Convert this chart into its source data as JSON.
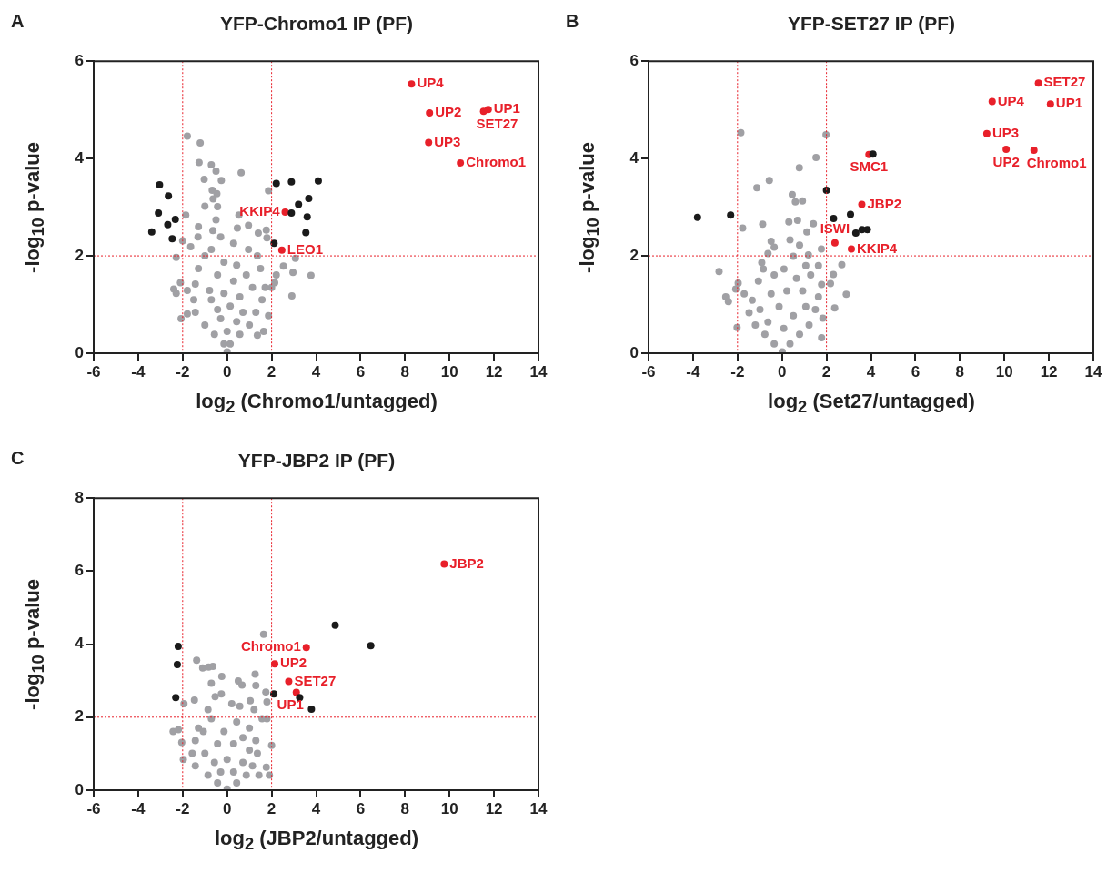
{
  "chart_data": [
    {
      "type": "scatter",
      "title": "YFP-Chromo1 IP (PF)",
      "xlabel": "log$_{2}$ (Chromo1/untagged)",
      "ylabel": "-log$_{10}$ p-value",
      "marker": "circle",
      "xlim": [
        -6,
        14
      ],
      "ylim": [
        0,
        6
      ],
      "xticks": [
        -6,
        -4,
        -2,
        0,
        2,
        4,
        6,
        8,
        10,
        12,
        14
      ],
      "yticks": [
        0,
        2,
        4,
        6
      ],
      "ref_lines": [
        {
          "axis": "x",
          "value": -2,
          "color": "#e8202a",
          "line_style": "dotted"
        },
        {
          "axis": "x",
          "value": 2,
          "color": "#e8202a",
          "line_style": "dotted"
        },
        {
          "axis": "y",
          "value": 2,
          "color": "#e8202a",
          "line_style": "dotted"
        }
      ],
      "series": [
        {
          "color": "#a0a0a4",
          "x": [
            -1.79,
            -1.21,
            -1.26,
            -0.71,
            -0.5,
            -1.03,
            -0.26,
            0.63,
            -0.67,
            -0.46,
            -0.63,
            -1.0,
            -0.43,
            -1.86,
            0.53,
            1.86,
            -0.5,
            -1.29,
            0.46,
            0.96,
            1.76,
            1.4,
            -2.0,
            1.79,
            -1.31,
            -0.64,
            -2.29,
            -1.64,
            2.53,
            3.07,
            2.96,
            3.77,
            2.21,
            2.91,
            -2.4,
            -2.1,
            -2.07,
            -1.79,
            1.36,
            1.64,
            1.86,
            0,
            -0.14,
            0.14,
            -0.57,
            0.57,
            -1.0,
            1.0,
            -1.43,
            1.29,
            -1.5,
            1.57,
            -1.43,
            1.71,
            -1.29,
            1.5,
            -1.0,
            0.96,
            -0.71,
            -0.29,
            0.29,
            -0.14,
            0.43,
            -0.43,
            0.29,
            -0.14,
            0.57,
            -0.71,
            0.14,
            -0.29,
            0.43,
            -0.43,
            0.71,
            0,
            -0.79,
            0.86,
            1.14,
            1.36,
            2.0,
            2.14,
            -2.29,
            -1.79
          ],
          "values": [
            4.46,
            4.32,
            3.92,
            3.87,
            3.74,
            3.57,
            3.55,
            3.71,
            3.35,
            3.28,
            3.17,
            3.02,
            3.01,
            2.84,
            2.84,
            3.34,
            2.74,
            2.6,
            2.57,
            2.63,
            2.53,
            2.47,
            2.31,
            2.37,
            2.39,
            2.52,
            1.97,
            2.19,
            1.79,
            1.95,
            1.66,
            1.6,
            1.61,
            1.18,
            1.32,
            1.45,
            0.71,
            0.81,
            0.37,
            0.45,
            0.77,
            0.03,
            0.19,
            0.19,
            0.39,
            0.39,
            0.58,
            0.58,
            0.84,
            0.84,
            1.1,
            1.1,
            1.42,
            1.35,
            1.74,
            1.74,
            2.0,
            2.13,
            2.13,
            2.39,
            2.26,
            1.87,
            1.81,
            1.61,
            1.48,
            1.23,
            1.16,
            1.1,
            0.97,
            0.71,
            0.65,
            0.9,
            0.84,
            0.45,
            1.29,
            1.61,
            1.35,
            2.0,
            1.35,
            1.45,
            1.23,
            1.29
          ]
        },
        {
          "color": "#1a1a1a",
          "x": [
            -3.04,
            -2.64,
            -3.09,
            -2.33,
            -2.67,
            -3.39,
            -2.47,
            2.21,
            2.89,
            4.1,
            3.67,
            3.21,
            2.89,
            3.6,
            3.54,
            2.11
          ],
          "values": [
            3.46,
            3.23,
            2.88,
            2.75,
            2.64,
            2.49,
            2.35,
            3.49,
            3.52,
            3.54,
            3.18,
            3.06,
            2.88,
            2.8,
            2.48,
            2.26
          ]
        },
        {
          "color": "#e8202a",
          "x": [
            8.29,
            9.1,
            11.74,
            11.53,
            9.06,
            10.49,
            2.61,
            2.46
          ],
          "values": [
            5.53,
            4.94,
            5.01,
            4.97,
            4.33,
            3.91,
            2.9,
            2.12
          ]
        }
      ],
      "annotations": [
        "A",
        {
          "text": "UP4",
          "x": 8.29,
          "y": 5.53
        },
        {
          "text": "UP2",
          "x": 9.1,
          "y": 4.94
        },
        {
          "text": "UP1",
          "x": 11.74,
          "y": 5.01
        },
        {
          "text": "SET27",
          "x": 11.53,
          "y": 4.97
        },
        {
          "text": "UP3",
          "x": 9.06,
          "y": 4.33
        },
        {
          "text": "Chromo1",
          "x": 10.49,
          "y": 3.91
        },
        {
          "text": "KKIP4",
          "x": 2.61,
          "y": 2.9
        },
        {
          "text": "LEO1",
          "x": 2.46,
          "y": 2.12
        }
      ]
    },
    {
      "type": "scatter",
      "title": "YFP-SET27 IP (PF)",
      "xlabel": "log$_{2}$ (Set27/untagged)",
      "ylabel": "-log$_{10}$ p-value",
      "marker": "circle",
      "xlim": [
        -6,
        14
      ],
      "ylim": [
        0,
        6
      ],
      "xticks": [
        -6,
        -4,
        -2,
        0,
        2,
        4,
        6,
        8,
        10,
        12,
        14
      ],
      "yticks": [
        0,
        2,
        4,
        6
      ],
      "ref_lines": [
        {
          "axis": "x",
          "value": -2,
          "color": "#e8202a",
          "line_style": "dotted"
        },
        {
          "axis": "x",
          "value": 2,
          "color": "#e8202a",
          "line_style": "dotted"
        },
        {
          "axis": "y",
          "value": 2,
          "color": "#e8202a",
          "line_style": "dotted"
        }
      ],
      "series": [
        {
          "color": "#a0a0a4",
          "x": [
            -1.85,
            1.98,
            1.53,
            0.78,
            -0.57,
            -1.13,
            0.46,
            0.92,
            0.6,
            0.31,
            0.7,
            -0.87,
            -1.77,
            1.41,
            1.12,
            -2.83,
            -2.53,
            -2.41,
            -2.02,
            -2.08,
            -1.97,
            -1.7,
            2.69,
            2.89,
            2.37,
            2.18,
            2.31,
            1.78,
            1.84,
            1.77,
            1.19,
            -0.49,
            0.36,
            0.79,
            0.01,
            -0.35,
            0.36,
            -0.77,
            0.79,
            -1.2,
            1.22,
            -1.48,
            1.5,
            -1.34,
            1.64,
            -1.06,
            1.78,
            -0.91,
            1.64,
            -0.63,
            0.51,
            0.09,
            -0.35,
            0.65,
            -0.49,
            0.22,
            0.93,
            -0.13,
            0.51,
            -0.63,
            0.08,
            1.07,
            -0.99,
            1.29,
            1.07,
            -0.35,
            -0.84
          ],
          "values": [
            4.53,
            4.49,
            4.02,
            3.81,
            3.55,
            3.4,
            3.26,
            3.13,
            3.11,
            2.7,
            2.73,
            2.65,
            2.57,
            2.66,
            2.49,
            1.68,
            1.16,
            1.06,
            0.53,
            1.32,
            1.44,
            1.22,
            1.82,
            1.21,
            0.93,
            1.43,
            1.62,
            0.32,
            0.72,
            2.14,
            2.02,
            2.3,
            2.33,
            2.22,
            0.03,
            0.19,
            0.19,
            0.39,
            0.39,
            0.58,
            0.58,
            0.83,
            0.9,
            1.09,
            1.16,
            1.48,
            1.41,
            1.86,
            1.8,
            2.05,
            1.99,
            1.73,
            1.61,
            1.54,
            1.22,
            1.28,
            1.28,
            0.96,
            0.77,
            0.64,
            0.51,
            0.96,
            0.9,
            1.61,
            1.8,
            2.18,
            1.73
          ]
        },
        {
          "color": "#1a1a1a",
          "x": [
            -3.8,
            -2.31,
            2.0,
            2.32,
            3.08,
            3.32,
            3.6,
            3.84,
            4.09
          ],
          "values": [
            2.79,
            2.84,
            3.35,
            2.77,
            2.85,
            2.47,
            2.54,
            2.54,
            4.09
          ]
        },
        {
          "color": "#e8202a",
          "x": [
            11.53,
            9.45,
            12.07,
            9.21,
            10.08,
            11.33,
            3.91,
            3.59,
            2.38,
            3.12
          ],
          "values": [
            5.55,
            5.17,
            5.12,
            4.51,
            4.19,
            4.17,
            4.08,
            3.06,
            2.27,
            2.14
          ]
        }
      ],
      "annotations": [
        "B",
        {
          "text": "SET27",
          "x": 11.53,
          "y": 5.55
        },
        {
          "text": "UP4",
          "x": 9.45,
          "y": 5.17
        },
        {
          "text": "UP1",
          "x": 12.07,
          "y": 5.12
        },
        {
          "text": "UP3",
          "x": 9.21,
          "y": 4.51
        },
        {
          "text": "UP2",
          "x": 10.08,
          "y": 4.19
        },
        {
          "text": "Chromo1",
          "x": 11.33,
          "y": 4.17
        },
        {
          "text": "SMC1",
          "x": 3.91,
          "y": 4.08
        },
        {
          "text": "JBP2",
          "x": 3.59,
          "y": 3.06
        },
        {
          "text": "ISWI",
          "x": 2.38,
          "y": 2.27
        },
        {
          "text": "KKIP4",
          "x": 3.12,
          "y": 2.14
        }
      ]
    },
    {
      "type": "scatter",
      "title": "YFP-JBP2 IP (PF)",
      "xlabel": "log$_{2}$ (JBP2/untagged)",
      "ylabel": "-log$_{10}$ p-value",
      "marker": "circle",
      "xlim": [
        -6,
        14
      ],
      "ylim": [
        0,
        8
      ],
      "xticks": [
        -6,
        -4,
        -2,
        0,
        2,
        4,
        6,
        8,
        10,
        12,
        14
      ],
      "yticks": [
        0,
        2,
        4,
        6,
        8
      ],
      "ref_lines": [
        {
          "axis": "x",
          "value": -2,
          "color": "#e8202a",
          "line_style": "dotted"
        },
        {
          "axis": "x",
          "value": 2,
          "color": "#e8202a",
          "line_style": "dotted"
        },
        {
          "axis": "y",
          "value": 2,
          "color": "#e8202a",
          "line_style": "dotted"
        }
      ],
      "series": [
        {
          "color": "#a0a0a4",
          "x": [
            1.64,
            -1.37,
            -1.1,
            -0.83,
            -0.64,
            -0.24,
            -0.71,
            1.26,
            0.5,
            0.67,
            1.29,
            1.74,
            -0.26,
            -0.54,
            -1.47,
            1.79,
            1.04,
            0.21,
            0.57,
            1.21,
            -1.94,
            -0.86,
            1.57,
            1.79,
            -2.43,
            -2.19,
            -2.04,
            -1.97,
            2.0,
            1.76,
            1.9,
            1.43,
            0,
            -0.43,
            0.43,
            -0.86,
            0.86,
            -1.43,
            1.14,
            -1.57,
            1.36,
            -1.43,
            1.29,
            -1.29,
            1.0,
            -0.71,
            0.43,
            -0.14,
            -0.43,
            0.29,
            0,
            -0.57,
            0.71,
            -0.29,
            0.29,
            -1.0,
            0.71,
            1.0,
            -1.07
          ],
          "values": [
            4.27,
            3.56,
            3.35,
            3.37,
            3.39,
            3.12,
            2.93,
            3.18,
            2.99,
            2.88,
            2.87,
            2.69,
            2.64,
            2.56,
            2.47,
            2.42,
            2.45,
            2.37,
            2.3,
            2.21,
            2.37,
            2.21,
            1.96,
            1.96,
            1.61,
            1.66,
            1.31,
            0.84,
            1.23,
            0.63,
            0.41,
            0.41,
            0.03,
            0.2,
            0.2,
            0.41,
            0.41,
            0.67,
            0.67,
            1.01,
            1.01,
            1.36,
            1.36,
            1.7,
            1.7,
            1.96,
            1.87,
            1.61,
            1.27,
            1.27,
            0.84,
            0.76,
            0.76,
            0.5,
            0.5,
            1.01,
            1.44,
            1.1,
            1.61
          ]
        },
        {
          "color": "#1a1a1a",
          "x": [
            4.86,
            6.46,
            -2.2,
            -2.24,
            -2.31,
            2.1,
            3.26,
            3.79
          ],
          "values": [
            4.52,
            3.96,
            3.94,
            3.44,
            2.54,
            2.64,
            2.54,
            2.22
          ]
        },
        {
          "color": "#e8202a",
          "x": [
            9.76,
            3.56,
            2.14,
            2.77,
            3.11
          ],
          "values": [
            6.2,
            3.91,
            3.46,
            2.98,
            2.68
          ]
        }
      ],
      "annotations": [
        "C",
        {
          "text": "JBP2",
          "x": 9.76,
          "y": 6.2
        },
        {
          "text": "Chromo1",
          "x": 3.56,
          "y": 3.91
        },
        {
          "text": "UP2",
          "x": 2.14,
          "y": 3.46
        },
        {
          "text": "SET27",
          "x": 2.77,
          "y": 2.98
        },
        {
          "text": "UP1",
          "x": 3.11,
          "y": 2.68
        }
      ]
    }
  ]
}
